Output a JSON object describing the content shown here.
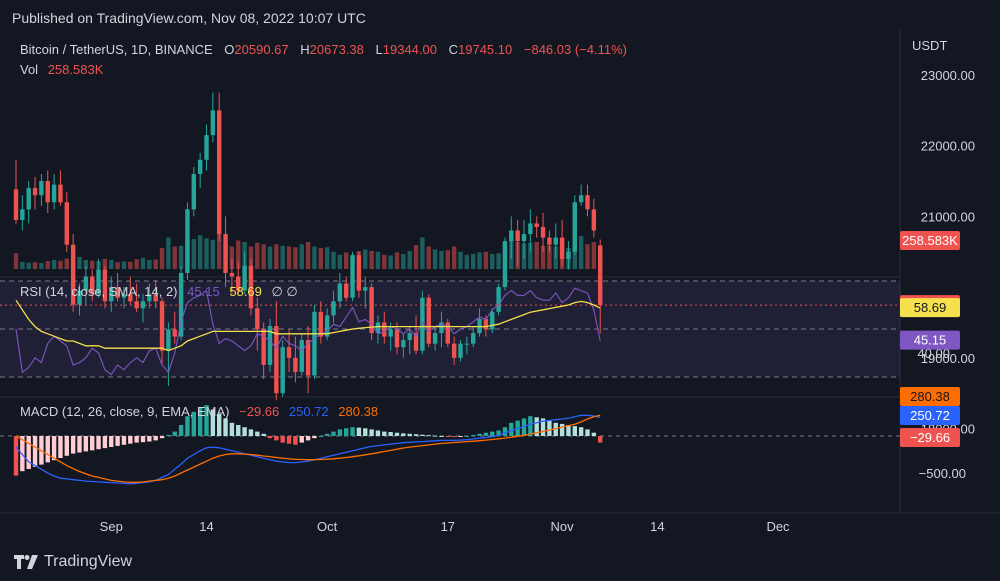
{
  "published": "Published on TradingView.com, Nov 08, 2022 10:07 UTC",
  "brand": "TradingView",
  "currency": "USDT",
  "header": {
    "symbol": "Bitcoin / TetherUS, 1D, BINANCE",
    "o_label": "O",
    "o": "20590.67",
    "h_label": "H",
    "h": "20673.38",
    "l_label": "L",
    "l": "19344.00",
    "c_label": "C",
    "c": "19745.10",
    "change": "−846.03 (−4.11%)",
    "vol_label": "Vol",
    "vol": "258.583K"
  },
  "rsi": {
    "label": "RSI (14, close, SMA, 14, 2)",
    "value": "45.15",
    "sma": "58.69",
    "nulls": "∅ ∅"
  },
  "macd": {
    "label": "MACD (12, 26, close, 9, EMA, EMA)",
    "hist": "−29.66",
    "macd": "250.72",
    "signal": "280.38"
  },
  "price_ticks": [
    "23000.00",
    "22000.00",
    "21000.00",
    "19000.00",
    "18000.00"
  ],
  "rsi_ticks": [
    "40.00"
  ],
  "macd_ticks": [
    "−500.00"
  ],
  "last_price_badge": "19745.10",
  "vol_badge": "258.583K",
  "rsi_badge": "45.15",
  "rsi_sma_badge": "58.69",
  "macd_signal_badge": "280.38",
  "macd_badge": "250.72",
  "macd_hist_badge": "−29.66",
  "x_ticks": [
    "Sep",
    "14",
    "Oct",
    "17",
    "Nov",
    "14",
    "Dec"
  ],
  "colors": {
    "up": "#26a69a",
    "down": "#ef5350",
    "rsi": "#7e57c2",
    "rsi_sma": "#f6e04b",
    "macd": "#2962ff",
    "signal": "#ff6d00",
    "bg": "#131722"
  },
  "chart_data": {
    "type": "candlestick",
    "title": "Bitcoin / TetherUS, 1D, BINANCE",
    "ylim": [
      17600,
      23600
    ],
    "candles": [
      [
        21380,
        21800,
        20900,
        20950
      ],
      [
        20950,
        21300,
        20800,
        21100
      ],
      [
        21100,
        21500,
        20900,
        21400
      ],
      [
        21400,
        21560,
        21100,
        21300
      ],
      [
        21300,
        21600,
        21150,
        21500
      ],
      [
        21500,
        21650,
        21050,
        21200
      ],
      [
        21200,
        21600,
        21100,
        21450
      ],
      [
        21450,
        21650,
        21150,
        21200
      ],
      [
        21200,
        21350,
        20500,
        20600
      ],
      [
        20600,
        20750,
        19650,
        19750
      ],
      [
        19750,
        20050,
        19600,
        19950
      ],
      [
        19950,
        20300,
        19750,
        20150
      ],
      [
        20150,
        20250,
        19800,
        19900
      ],
      [
        19900,
        20400,
        19850,
        20250
      ],
      [
        20250,
        20300,
        19700,
        19800
      ],
      [
        19800,
        20150,
        19650,
        20000
      ],
      [
        20000,
        20200,
        19800,
        19850
      ],
      [
        19850,
        20000,
        19700,
        19900
      ],
      [
        19900,
        20150,
        19750,
        19800
      ],
      [
        19800,
        20050,
        19650,
        19700
      ],
      [
        19700,
        19900,
        19500,
        19800
      ],
      [
        19800,
        20050,
        19700,
        19900
      ],
      [
        19900,
        20100,
        19700,
        19800
      ],
      [
        19800,
        19850,
        18900,
        19100
      ],
      [
        19100,
        19500,
        18600,
        19400
      ],
      [
        19400,
        19650,
        19200,
        19300
      ],
      [
        19300,
        20300,
        19250,
        20200
      ],
      [
        20200,
        21200,
        20100,
        21100
      ],
      [
        21100,
        21700,
        21000,
        21600
      ],
      [
        21600,
        21900,
        21400,
        21800
      ],
      [
        21800,
        22300,
        21650,
        22150
      ],
      [
        22150,
        22750,
        22050,
        22500
      ],
      [
        22500,
        22750,
        20650,
        20750
      ],
      [
        20750,
        21000,
        20000,
        20200
      ],
      [
        20200,
        20400,
        19900,
        20150
      ],
      [
        20150,
        20350,
        19900,
        19950
      ],
      [
        19950,
        20500,
        19900,
        20300
      ],
      [
        20300,
        20400,
        19600,
        19700
      ],
      [
        19700,
        19850,
        19100,
        19400
      ],
      [
        19400,
        19500,
        18700,
        18900
      ],
      [
        18900,
        19550,
        18800,
        19450
      ],
      [
        19450,
        19800,
        18400,
        18500
      ],
      [
        18500,
        19250,
        18450,
        19150
      ],
      [
        19150,
        19400,
        18800,
        19000
      ],
      [
        19000,
        19300,
        18650,
        18800
      ],
      [
        18800,
        19350,
        18750,
        19250
      ],
      [
        19250,
        19450,
        18500,
        18750
      ],
      [
        18750,
        19750,
        18700,
        19650
      ],
      [
        19650,
        19800,
        19200,
        19300
      ],
      [
        19300,
        19700,
        19250,
        19600
      ],
      [
        19600,
        19950,
        19500,
        19800
      ],
      [
        19800,
        20200,
        19700,
        20050
      ],
      [
        20050,
        20150,
        19800,
        19850
      ],
      [
        19850,
        20500,
        19800,
        20450
      ],
      [
        20450,
        20500,
        19850,
        19950
      ],
      [
        19950,
        20150,
        19700,
        20000
      ],
      [
        20000,
        20050,
        19250,
        19350
      ],
      [
        19350,
        19600,
        19200,
        19500
      ],
      [
        19500,
        19650,
        19200,
        19300
      ],
      [
        19300,
        19500,
        19100,
        19400
      ],
      [
        19400,
        19500,
        19050,
        19150
      ],
      [
        19150,
        19350,
        19000,
        19250
      ],
      [
        19250,
        19450,
        19050,
        19350
      ],
      [
        19350,
        19600,
        19050,
        19100
      ],
      [
        19100,
        19950,
        19050,
        19850
      ],
      [
        19850,
        19900,
        19150,
        19200
      ],
      [
        19200,
        19450,
        19100,
        19350
      ],
      [
        19350,
        19650,
        19150,
        19500
      ],
      [
        19500,
        19550,
        19150,
        19200
      ],
      [
        19200,
        19300,
        18900,
        19000
      ],
      [
        19000,
        19250,
        18950,
        19200
      ],
      [
        19200,
        19300,
        19050,
        19200
      ],
      [
        19200,
        19450,
        19150,
        19350
      ],
      [
        19350,
        19700,
        19300,
        19550
      ],
      [
        19550,
        19600,
        19300,
        19400
      ],
      [
        19400,
        19700,
        19350,
        19650
      ],
      [
        19650,
        20050,
        19600,
        20000
      ],
      [
        20000,
        20700,
        19950,
        20650
      ],
      [
        20650,
        21000,
        20400,
        20800
      ],
      [
        20800,
        20950,
        20300,
        20650
      ],
      [
        20650,
        20950,
        20400,
        20750
      ],
      [
        20750,
        21100,
        20500,
        20900
      ],
      [
        20900,
        21000,
        20700,
        20850
      ],
      [
        20850,
        21050,
        20500,
        20700
      ],
      [
        20700,
        20800,
        20500,
        20600
      ],
      [
        20600,
        20900,
        20400,
        20700
      ],
      [
        20700,
        20950,
        20300,
        20400
      ],
      [
        20400,
        20650,
        20250,
        20500
      ],
      [
        20500,
        21300,
        20450,
        21200
      ],
      [
        21200,
        21450,
        21150,
        21300
      ],
      [
        21300,
        21450,
        21000,
        21100
      ],
      [
        21100,
        21250,
        20700,
        20800
      ],
      [
        20590.67,
        20673.38,
        19344.0,
        19745.1
      ]
    ],
    "volumes": [
      210,
      95,
      85,
      90,
      80,
      105,
      120,
      110,
      140,
      230,
      160,
      120,
      110,
      105,
      135,
      120,
      90,
      100,
      95,
      130,
      150,
      120,
      125,
      280,
      420,
      300,
      310,
      380,
      400,
      450,
      410,
      390,
      470,
      330,
      300,
      380,
      360,
      300,
      350,
      330,
      300,
      330,
      310,
      300,
      290,
      330,
      360,
      300,
      280,
      290,
      230,
      190,
      220,
      190,
      240,
      260,
      240,
      230,
      190,
      180,
      220,
      200,
      240,
      320,
      420,
      300,
      260,
      240,
      250,
      300,
      230,
      190,
      200,
      220,
      230,
      200,
      210,
      360,
      390,
      360,
      340,
      350,
      360,
      310,
      310,
      300,
      320,
      280,
      380,
      440,
      330,
      360,
      258.583
    ],
    "rsi": [
      50,
      32,
      34,
      38,
      36,
      44,
      47,
      45,
      43,
      35,
      36,
      38,
      42,
      40,
      33,
      31,
      35,
      33,
      36,
      38,
      36,
      41,
      42,
      35,
      32,
      40,
      53,
      61,
      63,
      64,
      66,
      52,
      44,
      46,
      45,
      43,
      41,
      43,
      48,
      47,
      45,
      42,
      47,
      44,
      43,
      41,
      44,
      46,
      48,
      49,
      52,
      51,
      55,
      59,
      53,
      54,
      52,
      48,
      49,
      51,
      50,
      48,
      50,
      47,
      53,
      49,
      51,
      52,
      51,
      48,
      50,
      51,
      53,
      55,
      54,
      58,
      60,
      64,
      66,
      64,
      64,
      66,
      63,
      62,
      62,
      65,
      61,
      63,
      67,
      66,
      65,
      58,
      45.15
    ],
    "rsi_sma": [
      62,
      58,
      54,
      51,
      49,
      48,
      47,
      46,
      45,
      45,
      44,
      43,
      43,
      43,
      42,
      42,
      42,
      42,
      42,
      42,
      42,
      42,
      42,
      42,
      41,
      42,
      43,
      45,
      46,
      47,
      48,
      49,
      49,
      49,
      49,
      49,
      49,
      49,
      49,
      49,
      49,
      48,
      48,
      48,
      48,
      48,
      48,
      48,
      48,
      48,
      48.5,
      49,
      49.5,
      50,
      50.3,
      50.6,
      50.8,
      51,
      51,
      51,
      51,
      51,
      51,
      51,
      51,
      51,
      51,
      51,
      51,
      51,
      51,
      51,
      51,
      51,
      51,
      51.5,
      52,
      53,
      54,
      55,
      56,
      57,
      57.5,
      58,
      58.5,
      59,
      59.5,
      60,
      61,
      61.5,
      61,
      60,
      58.69
    ],
    "macd_hist": [
      -180,
      -160,
      -150,
      -140,
      -130,
      -120,
      -110,
      -100,
      -90,
      -80,
      -75,
      -70,
      -65,
      -60,
      -55,
      -50,
      -45,
      -40,
      -35,
      -30,
      -28,
      -25,
      -20,
      -10,
      5,
      20,
      50,
      90,
      110,
      130,
      140,
      120,
      100,
      80,
      60,
      50,
      40,
      30,
      20,
      10,
      -10,
      -20,
      -30,
      -35,
      -40,
      -30,
      -20,
      -10,
      0,
      10,
      20,
      30,
      35,
      40,
      38,
      35,
      30,
      25,
      20,
      18,
      15,
      12,
      10,
      8,
      6,
      4,
      2,
      0,
      -2,
      -4,
      -2,
      0,
      5,
      10,
      15,
      20,
      25,
      40,
      60,
      70,
      80,
      90,
      85,
      80,
      70,
      60,
      55,
      50,
      45,
      40,
      30,
      15,
      -29.66
    ],
    "macd": [
      -150,
      -250,
      -350,
      -400,
      -450,
      -500,
      -540,
      -570,
      -580,
      -590,
      -600,
      -610,
      -615,
      -620,
      -625,
      -630,
      -635,
      -640,
      -645,
      -640,
      -630,
      -620,
      -600,
      -560,
      -520,
      -450,
      -380,
      -300,
      -250,
      -200,
      -160,
      -150,
      -160,
      -180,
      -200,
      -220,
      -240,
      -260,
      -280,
      -300,
      -320,
      -340,
      -350,
      -360,
      -360,
      -350,
      -340,
      -320,
      -300,
      -280,
      -260,
      -240,
      -220,
      -200,
      -180,
      -160,
      -140,
      -130,
      -120,
      -110,
      -100,
      -90,
      -85,
      -80,
      -75,
      -70,
      -65,
      -60,
      -60,
      -58,
      -55,
      -50,
      -40,
      -30,
      -20,
      -10,
      10,
      40,
      70,
      100,
      130,
      160,
      180,
      200,
      210,
      220,
      230,
      240,
      260,
      280,
      280,
      270,
      250.72
    ],
    "signal": [
      0,
      -50,
      -100,
      -150,
      -200,
      -250,
      -300,
      -350,
      -400,
      -440,
      -480,
      -510,
      -540,
      -560,
      -580,
      -600,
      -610,
      -620,
      -625,
      -625,
      -620,
      -610,
      -600,
      -590,
      -570,
      -540,
      -500,
      -460,
      -420,
      -380,
      -340,
      -300,
      -270,
      -250,
      -240,
      -240,
      -245,
      -250,
      -260,
      -270,
      -280,
      -290,
      -300,
      -310,
      -315,
      -318,
      -320,
      -320,
      -318,
      -314,
      -308,
      -300,
      -290,
      -280,
      -268,
      -254,
      -240,
      -226,
      -210,
      -194,
      -178,
      -162,
      -150,
      -140,
      -130,
      -120,
      -110,
      -100,
      -94,
      -88,
      -82,
      -76,
      -70,
      -63,
      -55,
      -47,
      -38,
      -28,
      -16,
      -4,
      10,
      26,
      44,
      62,
      80,
      100,
      120,
      140,
      160,
      190,
      230,
      260,
      280.38
    ]
  }
}
